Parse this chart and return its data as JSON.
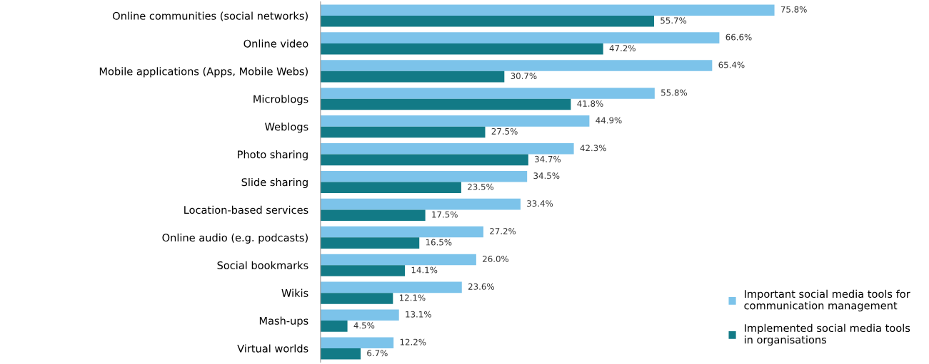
{
  "chart_data": {
    "type": "bar",
    "orientation": "horizontal",
    "categories": [
      "Online communities (social networks)",
      "Online video",
      "Mobile applications (Apps, Mobile Webs)",
      "Microblogs",
      "Weblogs",
      "Photo sharing",
      "Slide sharing",
      "Location-based services",
      "Online audio (e.g. podcasts)",
      "Social bookmarks",
      "Wikis",
      "Mash-ups",
      "Virtual worlds"
    ],
    "series": [
      {
        "name": "Important social media tools for communication management",
        "color": "#7cc3ea",
        "values": [
          75.8,
          66.6,
          65.4,
          55.8,
          44.9,
          42.3,
          34.5,
          33.4,
          27.2,
          26.0,
          23.6,
          13.1,
          12.2
        ],
        "value_labels": [
          "75.8%",
          "66.6%",
          "65.4%",
          "55.8%",
          "44.9%",
          "42.3%",
          "34.5%",
          "33.4%",
          "27.2%",
          "26.0%",
          "23.6%",
          "13.1%",
          "12.2%"
        ]
      },
      {
        "name": "Implemented social media tools in organisations",
        "color": "#127a86",
        "values": [
          55.7,
          47.2,
          30.7,
          41.8,
          27.5,
          34.7,
          23.5,
          17.5,
          16.5,
          14.1,
          12.1,
          4.5,
          6.7
        ],
        "value_labels": [
          "55.7%",
          "47.2%",
          "30.7%",
          "41.8%",
          "27.5%",
          "34.7%",
          "23.5%",
          "17.5%",
          "16.5%",
          "14.1%",
          "12.1%",
          "4.5%",
          "6.7%"
        ]
      }
    ],
    "tick_labels": "y",
    "grid": false,
    "legend": "bottom right"
  }
}
